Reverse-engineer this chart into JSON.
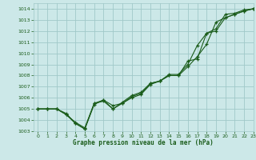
{
  "title": "Graphe pression niveau de la mer (hPa)",
  "background_color": "#cce8e8",
  "grid_color": "#a0c8c8",
  "line_color": "#1a5c1a",
  "xlim": [
    -0.5,
    23
  ],
  "ylim": [
    1003,
    1014.5
  ],
  "xticks": [
    0,
    1,
    2,
    3,
    4,
    5,
    6,
    7,
    8,
    9,
    10,
    11,
    12,
    13,
    14,
    15,
    16,
    17,
    18,
    19,
    20,
    21,
    22,
    23
  ],
  "yticks": [
    1003,
    1004,
    1005,
    1006,
    1007,
    1008,
    1009,
    1010,
    1011,
    1012,
    1013,
    1014
  ],
  "line1_y": [
    1005.0,
    1005.0,
    1005.0,
    1004.5,
    1003.7,
    1003.2,
    1005.5,
    1005.7,
    1005.0,
    1005.5,
    1006.1,
    1006.4,
    1007.3,
    1007.5,
    1008.1,
    1008.1,
    1009.0,
    1010.7,
    1011.8,
    1012.0,
    1013.2,
    1013.5,
    1013.8,
    1014.0
  ],
  "line2_y": [
    1005.0,
    1005.0,
    1005.0,
    1004.6,
    1003.7,
    1003.2,
    1005.4,
    1005.8,
    1005.0,
    1005.6,
    1006.2,
    1006.5,
    1007.3,
    1007.5,
    1008.0,
    1008.0,
    1009.3,
    1009.5,
    1011.8,
    1012.2,
    1013.5,
    1013.6,
    1013.9,
    1014.0
  ],
  "line3_y": [
    1005.0,
    1005.0,
    1005.0,
    1004.5,
    1003.8,
    1003.3,
    1005.5,
    1005.8,
    1005.3,
    1005.5,
    1006.0,
    1006.3,
    1007.2,
    1007.5,
    1008.0,
    1008.0,
    1008.8,
    1009.7,
    1010.8,
    1012.8,
    1013.2,
    1013.5,
    1013.8,
    1014.0
  ]
}
